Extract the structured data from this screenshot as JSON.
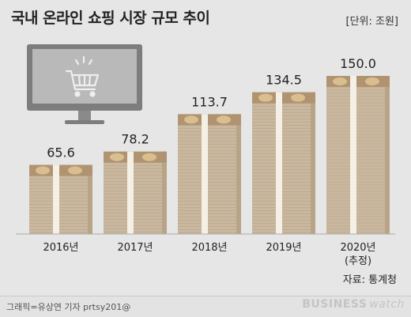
{
  "title": "국내 온라인 쇼핑 시장 규모 추이",
  "unit_label": "[단위: 조원]",
  "source": "자료: 통계청",
  "credit": "그래픽=유상연 기자 prtsy201@",
  "brand": {
    "part1": "BUSINESS",
    "part2": "watch"
  },
  "colors": {
    "background": "#e6e6e6",
    "stack_face": "#c9b89f",
    "stack_top": "#b09472",
    "stack_side": "#b8a487",
    "band": "#f5f0e6",
    "monitor": "#7d7d7d",
    "monitor_screen": "#b9b9b9",
    "cart": "#e8e8e8"
  },
  "icons": [
    "monitor-icon",
    "shopping-cart-icon"
  ],
  "chart_data": {
    "type": "bar",
    "categories": [
      "2016년",
      "2017년",
      "2018년",
      "2019년",
      "2020년"
    ],
    "category_notes": [
      "",
      "",
      "",
      "",
      "(추정)"
    ],
    "values": [
      65.6,
      78.2,
      113.7,
      134.5,
      150.0
    ],
    "value_labels": [
      "65.6",
      "78.2",
      "113.7",
      "134.5",
      "150.0"
    ],
    "ylim": [
      0,
      150
    ],
    "grid": false,
    "legend": "none",
    "style": "stacked banknote bundles"
  }
}
